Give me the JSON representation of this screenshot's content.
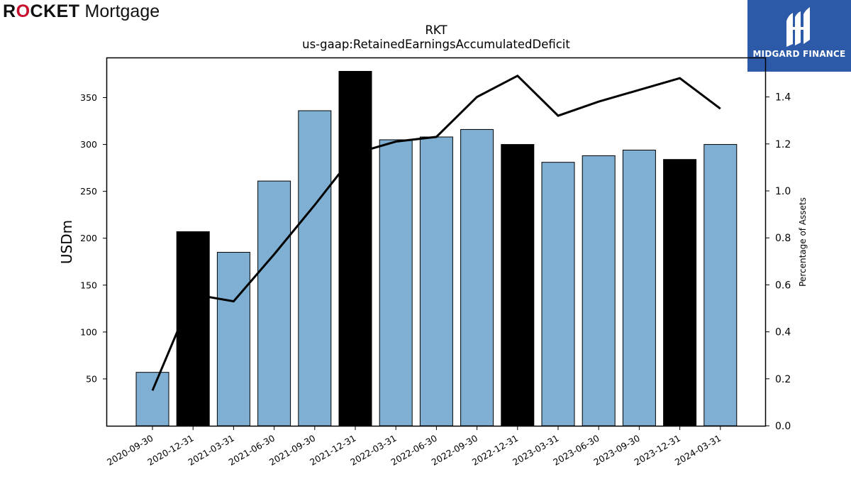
{
  "brand": {
    "part1": "R",
    "part2": "CKET",
    "part3": " Mortgage"
  },
  "badge": {
    "text": "MIDGARD FINANCE",
    "bg": "#2d5aa8"
  },
  "chart_data": {
    "type": "bar",
    "title": "RKT",
    "subtitle": "us-gaap:RetainedEarningsAccumulatedDeficit",
    "ylabel": "USDm",
    "y2label": "Percentage of Assets",
    "categories": [
      "2020-09-30",
      "2020-12-31",
      "2021-03-31",
      "2021-06-30",
      "2021-09-30",
      "2021-12-31",
      "2022-03-31",
      "2022-06-30",
      "2022-09-30",
      "2022-12-31",
      "2023-03-31",
      "2023-06-30",
      "2023-09-30",
      "2023-12-31",
      "2024-03-31"
    ],
    "values": [
      57,
      207,
      185,
      261,
      336,
      378,
      305,
      308,
      316,
      300,
      281,
      288,
      294,
      284,
      300
    ],
    "bar_colors": [
      "#7fb0d4",
      "#000000",
      "#7fb0d4",
      "#7fb0d4",
      "#7fb0d4",
      "#000000",
      "#7fb0d4",
      "#7fb0d4",
      "#7fb0d4",
      "#000000",
      "#7fb0d4",
      "#7fb0d4",
      "#7fb0d4",
      "#000000",
      "#7fb0d4"
    ],
    "line_series": {
      "values": [
        0.15,
        0.56,
        0.53,
        0.73,
        0.94,
        1.16,
        1.21,
        1.23,
        1.4,
        1.49,
        1.32,
        1.38,
        1.43,
        1.48,
        1.35
      ],
      "color": "#000000"
    },
    "ylim": [
      0,
      392
    ],
    "y2lim": [
      0,
      1.565
    ],
    "yticks": [
      50,
      100,
      150,
      200,
      250,
      300,
      350
    ],
    "y2ticks": [
      "0.0",
      "0.2",
      "0.4",
      "0.6",
      "0.8",
      "1.0",
      "1.2",
      "1.4"
    ],
    "grid": false
  }
}
